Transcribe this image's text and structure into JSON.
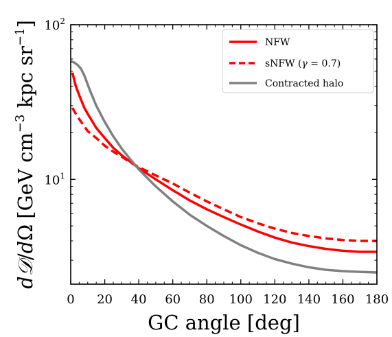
{
  "chart_data": {
    "type": "line",
    "title": "",
    "xlabel": "GC angle [deg]",
    "ylabel": "dD/dΩ [GeV cm−3 kpc sr−1]",
    "ylabel_parts": {
      "d1": "d",
      "D": "𝒟",
      "slash": "/",
      "d2": "d",
      "Omega": "Ω",
      "lead": "[GeV cm",
      "exp1": "−3",
      "mid": " kpc sr",
      "exp2": "−1",
      "tail": "]"
    },
    "x_scale": "linear",
    "y_scale": "log",
    "xlim": [
      0,
      180
    ],
    "ylim": [
      2.1,
      100
    ],
    "x_ticks": [
      0,
      20,
      40,
      60,
      80,
      100,
      120,
      140,
      160,
      180
    ],
    "x_tick_labels": [
      "0",
      "20",
      "40",
      "60",
      "80",
      "100",
      "120",
      "140",
      "160",
      "180"
    ],
    "y_major_ticks": [
      10,
      100
    ],
    "y_tick_labels": [
      {
        "base": "10",
        "exp": "1"
      },
      {
        "base": "10",
        "exp": "2"
      }
    ],
    "y_minor_ticks": [
      3,
      4,
      5,
      6,
      7,
      8,
      9,
      20,
      30,
      40,
      50,
      60,
      70,
      80,
      90
    ],
    "legend_position": "top-right",
    "series": [
      {
        "name": "NFW",
        "color": "#ff0000",
        "style": "solid",
        "x": [
          1,
          3,
          5,
          8,
          10,
          15,
          20,
          25,
          30,
          35,
          40,
          50,
          60,
          70,
          80,
          90,
          100,
          110,
          120,
          130,
          140,
          150,
          160,
          170,
          180
        ],
        "y": [
          49,
          40,
          35,
          29,
          26.5,
          21.5,
          18.5,
          16,
          14.3,
          13,
          11.8,
          10.0,
          8.5,
          7.3,
          6.4,
          5.7,
          5.1,
          4.6,
          4.2,
          3.9,
          3.7,
          3.55,
          3.45,
          3.4,
          3.4
        ]
      },
      {
        "name": "sNFW (γ = 0.7)",
        "label_parts": {
          "pre": "sNFW (",
          "gamma": "γ",
          "post": " = 0.7)"
        },
        "color": "#ff0000",
        "style": "dashed",
        "x": [
          1,
          3,
          5,
          8,
          10,
          15,
          20,
          25,
          30,
          35,
          40,
          50,
          60,
          70,
          80,
          90,
          100,
          110,
          120,
          130,
          140,
          150,
          160,
          170,
          180
        ],
        "y": [
          29,
          26.5,
          24.5,
          22,
          20.5,
          18.5,
          16.5,
          15.1,
          14,
          12.9,
          12.0,
          10.6,
          9.4,
          8.2,
          7.2,
          6.4,
          5.7,
          5.2,
          4.8,
          4.5,
          4.3,
          4.15,
          4.05,
          4.0,
          4.0
        ]
      },
      {
        "name": "Contracted halo",
        "color": "#808080",
        "style": "solid",
        "x": [
          0,
          2,
          4,
          6,
          8,
          10,
          12,
          15,
          20,
          25,
          30,
          35,
          40,
          50,
          60,
          70,
          80,
          90,
          100,
          110,
          120,
          130,
          140,
          150,
          160,
          170,
          180
        ],
        "y": [
          58,
          57,
          55,
          52,
          47,
          41,
          36,
          30,
          23.5,
          19,
          15.8,
          13.5,
          11.6,
          9.0,
          7.2,
          5.9,
          5.0,
          4.3,
          3.75,
          3.35,
          3.05,
          2.85,
          2.7,
          2.6,
          2.55,
          2.52,
          2.5
        ]
      }
    ]
  }
}
